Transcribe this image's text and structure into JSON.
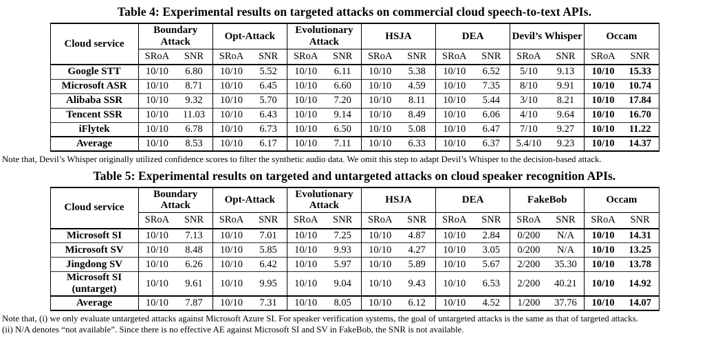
{
  "table4": {
    "title": "Table 4: Experimental results on targeted attacks on commercial cloud speech-to-text APIs.",
    "row_header": "Cloud service",
    "groups": [
      "Boundary Attack",
      "Opt-Attack",
      "Evolutionary Attack",
      "HSJA",
      "DEA",
      "Devil’s Whisper",
      "Occam"
    ],
    "subheaders": [
      "SRoA",
      "SNR"
    ],
    "rows": [
      {
        "service": "Google STT",
        "cells": [
          "10/10",
          "6.80",
          "10/10",
          "5.52",
          "10/10",
          "6.11",
          "10/10",
          "5.38",
          "10/10",
          "6.52",
          "5/10",
          "9.13",
          "10/10",
          "15.33"
        ]
      },
      {
        "service": "Microsoft ASR",
        "cells": [
          "10/10",
          "8.71",
          "10/10",
          "6.45",
          "10/10",
          "6.60",
          "10/10",
          "4.59",
          "10/10",
          "7.35",
          "8/10",
          "9.91",
          "10/10",
          "10.74"
        ]
      },
      {
        "service": "Alibaba SSR",
        "cells": [
          "10/10",
          "9.32",
          "10/10",
          "5.70",
          "10/10",
          "7.20",
          "10/10",
          "8.11",
          "10/10",
          "5.44",
          "3/10",
          "8.21",
          "10/10",
          "17.84"
        ]
      },
      {
        "service": "Tencent SSR",
        "cells": [
          "10/10",
          "11.03",
          "10/10",
          "6.43",
          "10/10",
          "9.14",
          "10/10",
          "8.49",
          "10/10",
          "6.06",
          "4/10",
          "9.64",
          "10/10",
          "16.70"
        ]
      },
      {
        "service": "iFlytek",
        "cells": [
          "10/10",
          "6.78",
          "10/10",
          "6.73",
          "10/10",
          "6.50",
          "10/10",
          "5.08",
          "10/10",
          "6.47",
          "7/10",
          "9.27",
          "10/10",
          "11.22"
        ]
      },
      {
        "service": "Average",
        "cells": [
          "10/10",
          "8.53",
          "10/10",
          "6.17",
          "10/10",
          "7.11",
          "10/10",
          "6.33",
          "10/10",
          "6.37",
          "5.4/10",
          "9.23",
          "10/10",
          "14.37"
        ]
      }
    ],
    "note": "Note that, Devil’s Whisper originally utilized confidence scores to filter the synthetic audio data. We omit this step to adapt Devil’s Whisper to the decision-based attack."
  },
  "table5": {
    "title": "Table 5: Experimental results on targeted and untargeted attacks on cloud speaker recognition APIs.",
    "row_header": "Cloud service",
    "groups": [
      "Boundary Attack",
      "Opt-Attack",
      "Evolutionary Attack",
      "HSJA",
      "DEA",
      "FakeBob",
      "Occam"
    ],
    "subheaders": [
      "SRoA",
      "SNR"
    ],
    "rows": [
      {
        "service": "Microsoft SI",
        "cells": [
          "10/10",
          "7.13",
          "10/10",
          "7.01",
          "10/10",
          "7.25",
          "10/10",
          "4.87",
          "10/10",
          "2.84",
          "0/200",
          "N/A",
          "10/10",
          "14.31"
        ]
      },
      {
        "service": "Microsoft SV",
        "cells": [
          "10/10",
          "8.48",
          "10/10",
          "5.85",
          "10/10",
          "9.93",
          "10/10",
          "4.27",
          "10/10",
          "3.05",
          "0/200",
          "N/A",
          "10/10",
          "13.25"
        ]
      },
      {
        "service": "Jingdong SV",
        "cells": [
          "10/10",
          "6.26",
          "10/10",
          "6.42",
          "10/10",
          "5.97",
          "10/10",
          "5.89",
          "10/10",
          "5.67",
          "2/200",
          "35.30",
          "10/10",
          "13.78"
        ]
      },
      {
        "service": "Microsoft SI (untarget)",
        "cells": [
          "10/10",
          "9.61",
          "10/10",
          "9.95",
          "10/10",
          "9.04",
          "10/10",
          "9.43",
          "10/10",
          "6.53",
          "2/200",
          "40.21",
          "10/10",
          "14.92"
        ]
      },
      {
        "service": "Average",
        "cells": [
          "10/10",
          "7.87",
          "10/10",
          "7.31",
          "10/10",
          "8.05",
          "10/10",
          "6.12",
          "10/10",
          "4.52",
          "1/200",
          "37.76",
          "10/10",
          "14.07"
        ]
      }
    ],
    "notes": [
      "Note that, (i) we only evaluate untargeted attacks against Microsoft Azure SI. For speaker verification systems, the goal of untargeted attacks is the same as that of targeted attacks.",
      "(ii) N/A denotes “not available”. Since there is no effective AE against Microsoft SI and SV in FakeBob, the SNR is not available."
    ]
  }
}
